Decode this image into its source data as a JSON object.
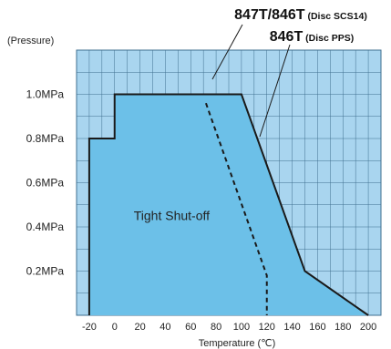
{
  "chart_data": {
    "type": "area",
    "xlabel": "Temperature (℃)",
    "ylabel": "(Pressure)",
    "xlim": [
      -30,
      210
    ],
    "ylim": [
      0,
      1.2
    ],
    "x_ticks": [
      "-20",
      "0",
      "20",
      "40",
      "60",
      "80",
      "100",
      "120",
      "140",
      "160",
      "180",
      "200"
    ],
    "y_ticks": [
      {
        "value": 0.2,
        "label": "0.2MPa"
      },
      {
        "value": 0.4,
        "label": "0.4MPa"
      },
      {
        "value": 0.6,
        "label": "0.6MPa"
      },
      {
        "value": 0.8,
        "label": "0.8MPa"
      },
      {
        "value": 1.0,
        "label": "1.0MPa"
      }
    ],
    "grid": true,
    "series": [
      {
        "name": "846T (Disc PPS)",
        "style": "solid",
        "points": [
          [
            -20,
            0
          ],
          [
            -20,
            0.8
          ],
          [
            0,
            0.8
          ],
          [
            0,
            1.0
          ],
          [
            100,
            1.0
          ],
          [
            150,
            0.2
          ],
          [
            200,
            0
          ]
        ]
      },
      {
        "name": "847T/846T (Disc SCS14)",
        "style": "dashed",
        "points": [
          [
            72,
            0.96
          ],
          [
            120,
            0.18
          ],
          [
            120,
            0
          ]
        ]
      }
    ],
    "annotations": [
      {
        "text": "Tight Shut-off",
        "x": 45,
        "y": 0.43
      }
    ],
    "title_lines": [
      {
        "main": "847T/846T",
        "sub": " (Disc SCS14)"
      },
      {
        "main": "846T",
        "sub": " (Disc PPS)"
      }
    ],
    "colors": {
      "fill": "#6cc0e8",
      "background": "#a9d5ef",
      "grid": "#3f6f8f",
      "line": "#1a1a1a"
    }
  }
}
